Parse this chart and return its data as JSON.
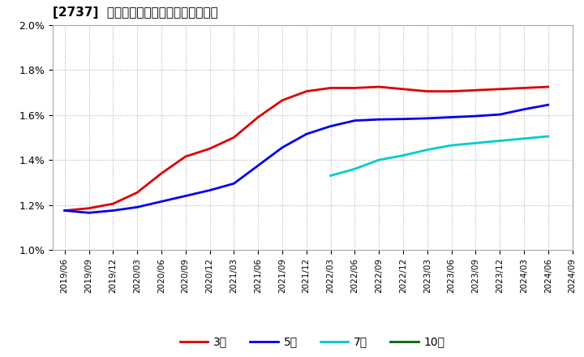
{
  "title": "[2737]  経常利益マージンの平均値の推移",
  "ylim": [
    0.01,
    0.02
  ],
  "yticks": [
    0.01,
    0.012,
    0.014,
    0.016,
    0.018,
    0.02
  ],
  "background_color": "#ffffff",
  "grid_color": "#b0b0b0",
  "series": [
    {
      "key": "3year",
      "color": "#dd0000",
      "label": "3年",
      "x": [
        0,
        1,
        2,
        3,
        4,
        5,
        6,
        7,
        8,
        9,
        10,
        11,
        12,
        13,
        14,
        15,
        16,
        17,
        18,
        19,
        20
      ],
      "y": [
        0.01175,
        0.01185,
        0.01205,
        0.01255,
        0.0134,
        0.01415,
        0.0145,
        0.015,
        0.0159,
        0.01665,
        0.01705,
        0.0172,
        0.0172,
        0.01725,
        0.01715,
        0.01705,
        0.01705,
        0.0171,
        0.01715,
        0.0172,
        0.01725
      ]
    },
    {
      "key": "5year",
      "color": "#0000ee",
      "label": "5年",
      "x": [
        0,
        1,
        2,
        3,
        4,
        5,
        6,
        7,
        8,
        9,
        10,
        11,
        12,
        13,
        14,
        15,
        16,
        17,
        18,
        19,
        20
      ],
      "y": [
        0.01175,
        0.01165,
        0.01175,
        0.0119,
        0.01215,
        0.0124,
        0.01265,
        0.01295,
        0.01375,
        0.01455,
        0.01515,
        0.0155,
        0.01575,
        0.0158,
        0.01582,
        0.01585,
        0.0159,
        0.01595,
        0.01602,
        0.01625,
        0.01645
      ]
    },
    {
      "key": "7year",
      "color": "#00cccc",
      "label": "7年",
      "x": [
        11,
        12,
        13,
        14,
        15,
        16,
        17,
        18,
        19,
        20
      ],
      "y": [
        0.0133,
        0.0136,
        0.014,
        0.0142,
        0.01445,
        0.01465,
        0.01475,
        0.01485,
        0.01495,
        0.01505
      ]
    },
    {
      "key": "10year",
      "color": "#006600",
      "label": "10年",
      "x": [],
      "y": []
    }
  ],
  "xtick_labels": [
    "2019/06",
    "2019/09",
    "2019/12",
    "2020/03",
    "2020/06",
    "2020/09",
    "2020/12",
    "2021/03",
    "2021/06",
    "2021/09",
    "2021/12",
    "2022/03",
    "2022/06",
    "2022/09",
    "2022/12",
    "2023/03",
    "2023/06",
    "2023/09",
    "2023/12",
    "2024/03",
    "2024/06",
    "2024/09"
  ]
}
